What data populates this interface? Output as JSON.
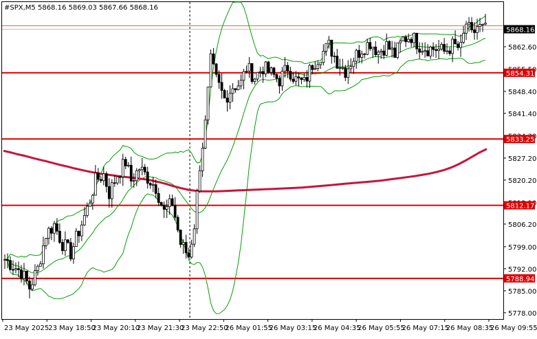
{
  "header": {
    "symbol_label": "#SPX,M5",
    "ohlc_label": "5868.16 5869.03 5867.66 5868.16"
  },
  "colors": {
    "background": "#ffffff",
    "candle": "#000000",
    "bollinger": "#00a000",
    "moving_average": "#c8143c",
    "levels": "#e00000",
    "current_price_line": "#c0c0c0",
    "current_price_tag_bg": "#000000",
    "level_tag_bg": "#e00000"
  },
  "chart_data": {
    "type": "candlestick",
    "title": "#SPX,M5",
    "ylim": [
      5776.0,
      5876.8
    ],
    "y_ticks": [
      "5862.60",
      "5855.50",
      "5848.40",
      "5841.40",
      "5834.30",
      "5827.20",
      "5820.20",
      "5813.10",
      "5806.20",
      "5799.00",
      "5792.00",
      "5785.00",
      "5778.00"
    ],
    "x_ticks": [
      "23 May 2025",
      "23 May 18:50",
      "23 May 20:10",
      "23 May 21:30",
      "23 May 22:50",
      "26 May 01:55",
      "26 May 03:15",
      "26 May 04:35",
      "26 May 05:55",
      "26 May 07:15",
      "26 May 08:35",
      "26 May 09:55"
    ],
    "current_price": {
      "value": 5868.16,
      "label": "5868.16"
    },
    "levels": [
      {
        "value": 5854.31,
        "label": "5854.31"
      },
      {
        "value": 5833.25,
        "label": "5833.25"
      },
      {
        "value": 5812.17,
        "label": "5812.17"
      },
      {
        "value": 5788.94,
        "label": "5788.94"
      }
    ],
    "session_separator_x": "23 May 22:50",
    "indicators": [
      "Bollinger Bands",
      "Moving Average"
    ],
    "moving_average_path": [
      5829.5,
      5829.0,
      5828.4,
      5827.9,
      5827.3,
      5826.7,
      5826.2,
      5825.6,
      5825.0,
      5824.5,
      5823.9,
      5823.4,
      5822.9,
      5822.5,
      5822.1,
      5821.8,
      5821.5,
      5821.2,
      5821.0,
      5820.7,
      5820.4,
      5820.0,
      5819.5,
      5818.9,
      5818.2,
      5817.6,
      5817.1,
      5816.8,
      5816.6,
      5816.6,
      5816.6,
      5816.7,
      5816.8,
      5816.9,
      5817.0,
      5817.1,
      5817.2,
      5817.3,
      5817.4,
      5817.5,
      5817.6,
      5817.7,
      5817.8,
      5818.0,
      5818.2,
      5818.4,
      5818.6,
      5818.8,
      5819.0,
      5819.2,
      5819.4,
      5819.6,
      5819.8,
      5820.0,
      5820.3,
      5820.6,
      5820.9,
      5821.2,
      5821.5,
      5821.9,
      5822.3,
      5822.8,
      5823.4,
      5824.2,
      5825.2,
      5826.4,
      5827.7,
      5829.0,
      5830.1
    ]
  }
}
